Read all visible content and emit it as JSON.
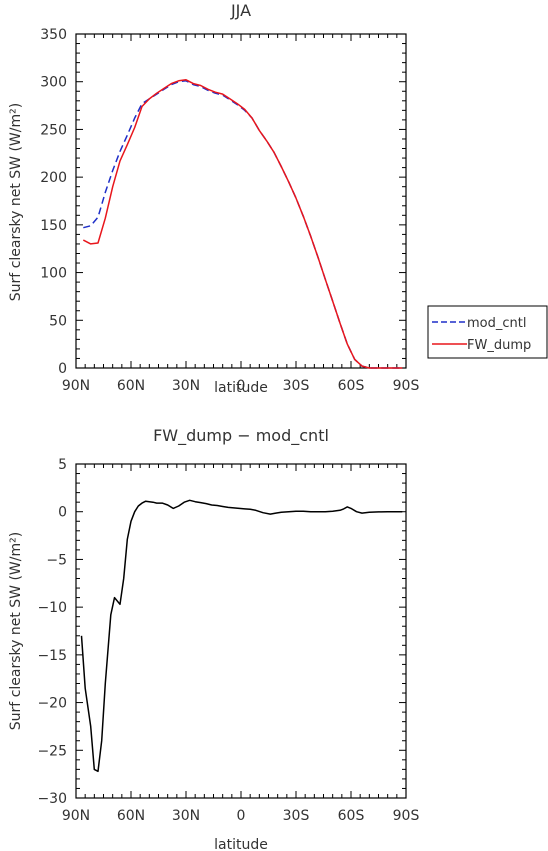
{
  "chart_data": [
    {
      "type": "line",
      "title": "JJA",
      "xlabel": "latitude",
      "ylabel": "Surf clearsky net SW (W/m²)",
      "xlim": [
        90,
        -90
      ],
      "ylim": [
        0,
        350
      ],
      "x_ticks": [
        "90N",
        "60N",
        "30N",
        "0",
        "30S",
        "60S",
        "90S"
      ],
      "y_ticks": [
        "0",
        "50",
        "100",
        "150",
        "200",
        "250",
        "300",
        "350"
      ],
      "legend": {
        "placement": "right",
        "entries": [
          "mod_cntl",
          "FW_dump"
        ]
      },
      "series": [
        {
          "name": "mod_cntl",
          "color": "#1f2fc8",
          "style": "dashed",
          "x": [
            86,
            82,
            78,
            74,
            70,
            66,
            62,
            58,
            54,
            50,
            46,
            42,
            38,
            34,
            30,
            26,
            22,
            18,
            14,
            10,
            6,
            2,
            -2,
            -6,
            -10,
            -14,
            -18,
            -22,
            -26,
            -30,
            -34,
            -38,
            -42,
            -46,
            -50,
            -54,
            -58,
            -62,
            -66,
            -70,
            -74,
            -78,
            -82,
            -86,
            -88
          ],
          "y": [
            147,
            149,
            158,
            184,
            207,
            227,
            244,
            262,
            277,
            282,
            287,
            292,
            297,
            300,
            301,
            297,
            295,
            291,
            288,
            286,
            281,
            276,
            270,
            262,
            249,
            238,
            226,
            211,
            195,
            178,
            159,
            138,
            116,
            93,
            70,
            47,
            25,
            9,
            2,
            0,
            0,
            0,
            0,
            0,
            0
          ]
        },
        {
          "name": "FW_dump",
          "color": "#e8161c",
          "style": "solid",
          "x": [
            86,
            82,
            78,
            74,
            70,
            66,
            62,
            58,
            54,
            50,
            46,
            42,
            38,
            34,
            30,
            26,
            22,
            18,
            14,
            10,
            6,
            2,
            -2,
            -6,
            -10,
            -14,
            -18,
            -22,
            -26,
            -30,
            -34,
            -38,
            -42,
            -46,
            -50,
            -54,
            -58,
            -62,
            -66,
            -70,
            -74,
            -78,
            -82,
            -86,
            -88
          ],
          "y": [
            134,
            130,
            131,
            157,
            190,
            217,
            234,
            252,
            274,
            282,
            288,
            293,
            298,
            301,
            302,
            298,
            296,
            292,
            289,
            287,
            282,
            277,
            271,
            262,
            249,
            238,
            226,
            211,
            195,
            178,
            159,
            138,
            116,
            93,
            70,
            47,
            25,
            9,
            2,
            0,
            0,
            0,
            0,
            0,
            0
          ]
        }
      ]
    },
    {
      "type": "line",
      "title": "FW_dump − mod_cntl",
      "xlabel": "latitude",
      "ylabel": "Surf clearsky net SW (W/m²)",
      "xlim": [
        90,
        -90
      ],
      "ylim": [
        -30,
        5
      ],
      "x_ticks": [
        "90N",
        "60N",
        "30N",
        "0",
        "30S",
        "60S",
        "90S"
      ],
      "y_ticks": [
        "5",
        "0",
        "−5",
        "−10",
        "−15",
        "−20",
        "−25",
        "−30"
      ],
      "series": [
        {
          "color": "#000000",
          "style": "solid",
          "x": [
            87,
            85,
            82,
            80,
            78,
            76,
            74,
            71,
            69,
            66,
            64,
            62,
            60,
            58,
            56,
            54,
            52,
            50,
            48,
            46,
            43,
            40,
            37,
            34,
            31,
            28,
            25,
            22,
            19,
            16,
            13,
            10,
            7,
            4,
            1,
            -2,
            -5,
            -8,
            -12,
            -16,
            -19,
            -22,
            -26,
            -30,
            -34,
            -38,
            -42,
            -46,
            -50,
            -54,
            -56,
            -58,
            -60,
            -63,
            -66,
            -70,
            -75,
            -80,
            -85,
            -88
          ],
          "y": [
            -13,
            -18.5,
            -22.5,
            -27,
            -27.2,
            -24,
            -18,
            -10.8,
            -9,
            -9.7,
            -7,
            -2.9,
            -1,
            0,
            0.6,
            0.9,
            1.1,
            1.05,
            1.0,
            0.9,
            0.9,
            0.7,
            0.35,
            0.6,
            1.0,
            1.2,
            1.05,
            0.95,
            0.85,
            0.7,
            0.65,
            0.55,
            0.45,
            0.4,
            0.35,
            0.3,
            0.25,
            0.15,
            -0.1,
            -0.25,
            -0.15,
            -0.05,
            0.0,
            0.05,
            0.05,
            0.0,
            0.0,
            0.0,
            0.05,
            0.15,
            0.3,
            0.5,
            0.35,
            0.0,
            -0.15,
            -0.05,
            -0.02,
            0.0,
            0.0,
            0.0
          ]
        }
      ]
    }
  ]
}
